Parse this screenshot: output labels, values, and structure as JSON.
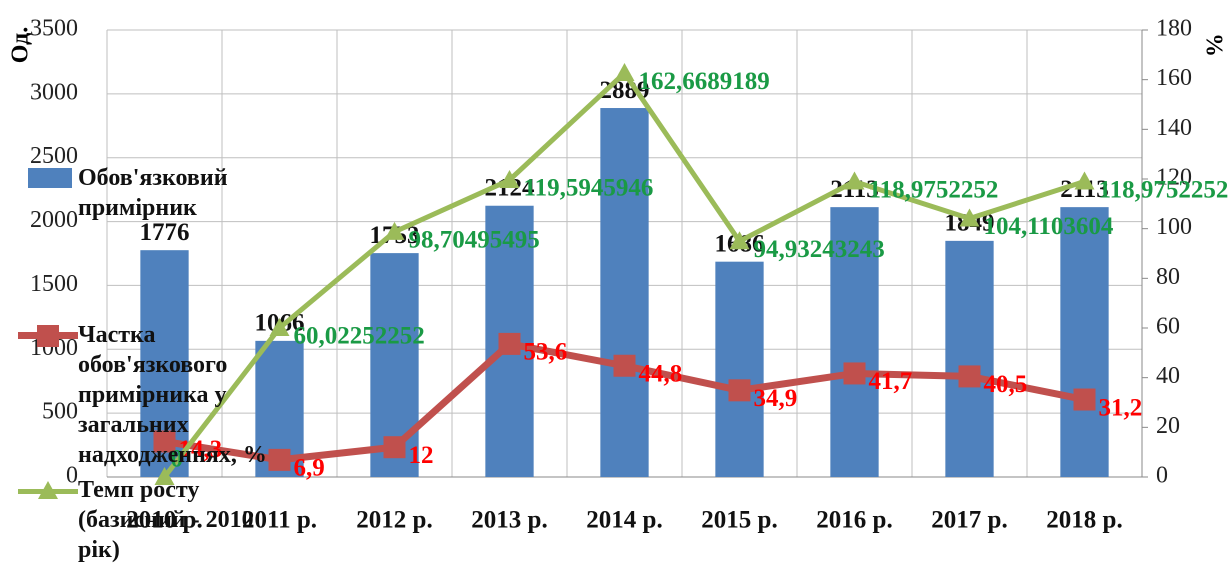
{
  "chart_data": {
    "type": "bar-line",
    "ylabel": "Од.",
    "y2label": "%",
    "categories": [
      "2010 р.",
      "2011 р.",
      "2012 р.",
      "2013 р.",
      "2014 р.",
      "2015 р.",
      "2016 р.",
      "2017 р.",
      "2018 р."
    ],
    "series": [
      {
        "name": "Обов'язковий примірник",
        "type": "bar",
        "color": "#4f81bd",
        "values": [
          1776,
          1066,
          1753,
          2124,
          2889,
          1686,
          2113,
          1849,
          2113
        ]
      },
      {
        "name": "Частка обов'язкового примірника у загальних надходженнях, %",
        "type": "line",
        "axis": "y2",
        "color": "#c0504d",
        "marker": "square",
        "values": [
          14.3,
          6.9,
          12,
          53.6,
          44.8,
          34.9,
          41.7,
          40.5,
          31.2
        ],
        "value_labels": [
          "14,3",
          "6,9",
          "12",
          "53,6",
          "44,8",
          "34,9",
          "41,7",
          "40,5",
          "31,2"
        ]
      },
      {
        "name": "Темп росту (базисний - 2010 рік)",
        "type": "line",
        "axis": "y2",
        "color": "#9bbb59",
        "marker": "triangle",
        "values": [
          0,
          60.02252252,
          98.70495495,
          119.5945946,
          162.6689189,
          94.93243243,
          118.9752252,
          104.1103604,
          118.9752252
        ],
        "value_labels": [
          "0",
          "60,02252252",
          "98,70495495",
          "119,5945946",
          "162,6689189",
          "94,93243243",
          "118,9752252",
          "104,1103604",
          "118,9752252"
        ]
      }
    ],
    "ylim": [
      0,
      3500
    ],
    "yticks": [
      0,
      500,
      1000,
      1500,
      2000,
      2500,
      3000,
      3500
    ],
    "y2lim": [
      0,
      180
    ],
    "y2ticks": [
      0,
      20,
      40,
      60,
      80,
      100,
      120,
      140,
      160,
      180
    ],
    "grid": true,
    "legend": "left"
  }
}
